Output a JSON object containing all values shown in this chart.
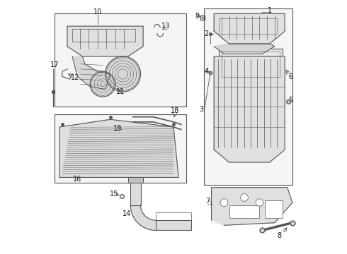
{
  "bg_color": "#ffffff",
  "line_color": "#555555",
  "box_fill": "#f5f5f5",
  "text_color": "#111111"
}
